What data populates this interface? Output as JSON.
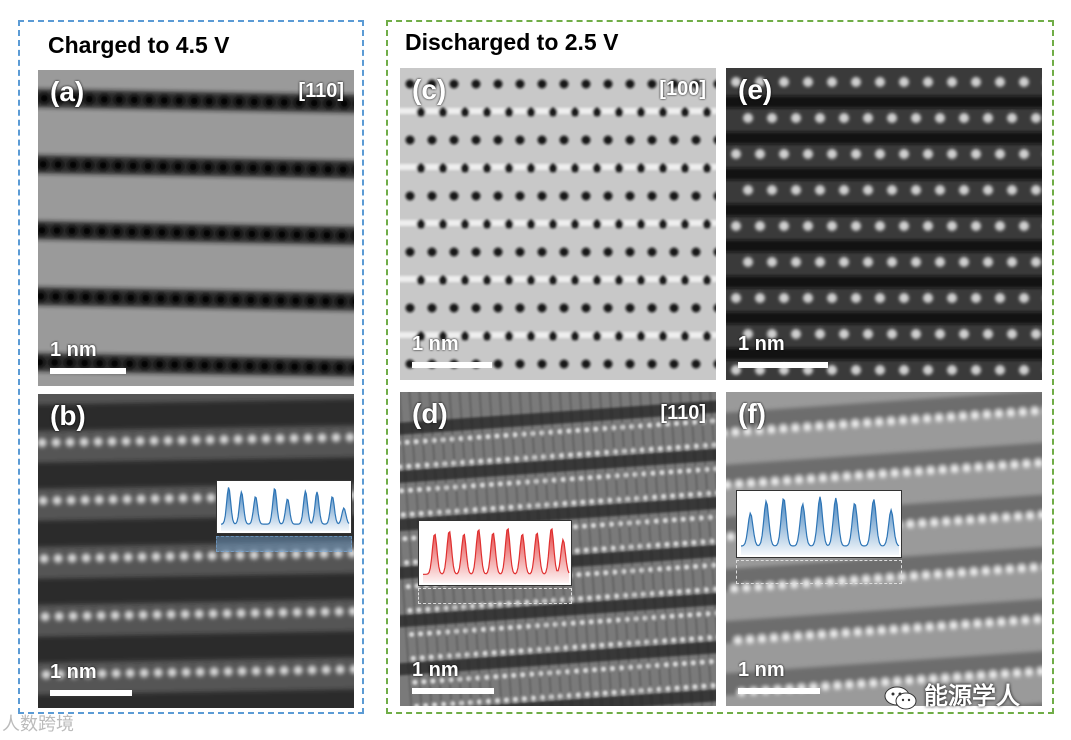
{
  "groups": {
    "charged_title": "Charged to 4.5 V",
    "discharged_title": "Discharged to 2.5 V"
  },
  "panels": {
    "a": {
      "label": "(a)",
      "zone": "[110]",
      "scale": "1 nm"
    },
    "b": {
      "label": "(b)",
      "scale": "1 nm"
    },
    "c": {
      "label": "(c)",
      "zone": "[100]",
      "scale": "1 nm"
    },
    "d": {
      "label": "(d)",
      "zone": "[110]",
      "scale": "1 nm"
    },
    "e": {
      "label": "(e)",
      "scale": "1 nm"
    },
    "f": {
      "label": "(f)",
      "scale": "1 nm"
    }
  },
  "colors": {
    "charged_border": "#5b9bd5",
    "discharged_border": "#70ad47",
    "profile_blue": "#2e75b6",
    "profile_red": "#e03030"
  },
  "watermarks": {
    "left": "人数跨境",
    "right": "能源学人",
    "right_icon": "wechat-icon"
  }
}
